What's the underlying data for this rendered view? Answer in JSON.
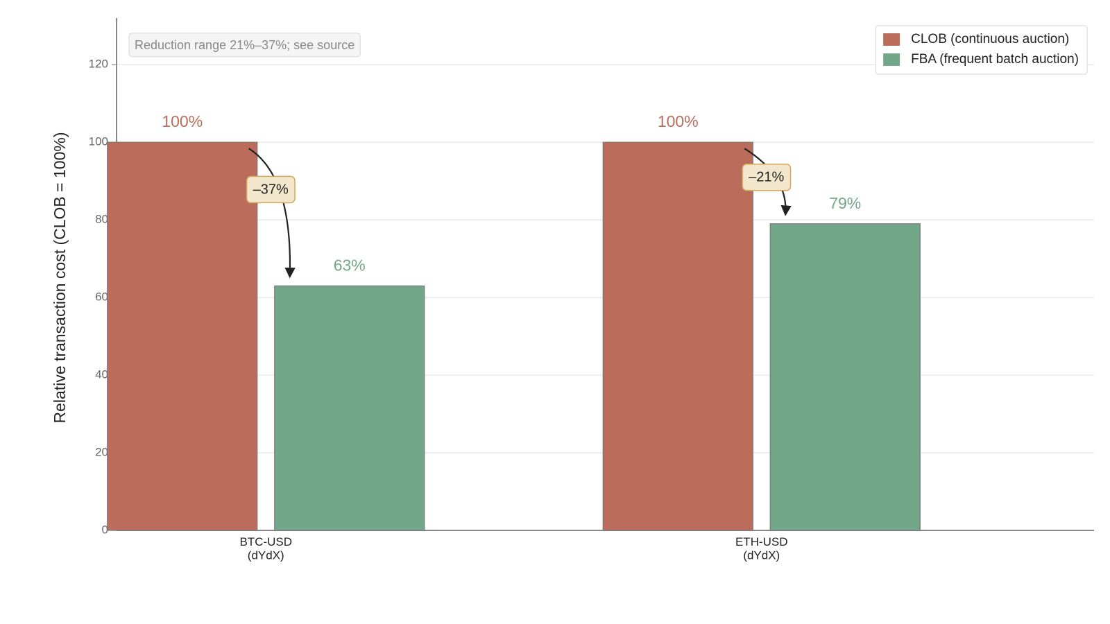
{
  "chart_data": {
    "type": "bar",
    "note": "Reduction range 21%–37%; see source",
    "y_label": "Relative transaction cost (CLOB = 100%)",
    "categories": [
      "BTC-USD\n(dYdX)",
      "ETH-USD\n(dYdX)"
    ],
    "series": [
      {
        "name": "CLOB (continuous auction)",
        "color": "#bc6c5a",
        "values": [
          100,
          100
        ],
        "value_labels": [
          "100%",
          "100%"
        ]
      },
      {
        "name": "FBA (frequent batch auction)",
        "color": "#72a789",
        "values": [
          63,
          79
        ],
        "value_labels": [
          "63%",
          "79%"
        ]
      }
    ],
    "annotations": [
      "–37%",
      "–21%"
    ],
    "ylim": [
      0,
      132
    ],
    "yticks": [
      0,
      20,
      40,
      60,
      80,
      100,
      120
    ],
    "grid": true,
    "legend": "upper right"
  }
}
